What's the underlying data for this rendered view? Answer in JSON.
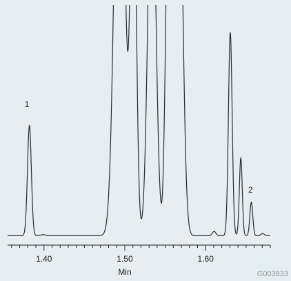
{
  "colors": {
    "background": "#e6eef1",
    "trace": "#2a2a2a",
    "axis": "#222222",
    "figure_id": "#8a9aa3"
  },
  "figure_id": "G003833",
  "chart_data": {
    "type": "line",
    "title": "",
    "xlabel": "Min",
    "ylabel": "",
    "xlim": [
      1.355,
      1.68
    ],
    "ylim": [
      0,
      100
    ],
    "x_ticks": [
      1.4,
      1.5,
      1.6
    ],
    "x_tick_labels": [
      "1.40",
      "1.50",
      "1.60"
    ],
    "minor_tick_step": 0.01,
    "grid": false,
    "baseline": 0.5,
    "peaks": [
      {
        "x": 1.382,
        "height": 51,
        "width": 0.0024
      },
      {
        "x": 1.399,
        "height": 0.5,
        "width": 0.003
      },
      {
        "x": 1.4935,
        "height": 240,
        "width": 0.006
      },
      {
        "x": 1.5105,
        "height": 190,
        "width": 0.0035
      },
      {
        "x": 1.5335,
        "height": 180,
        "width": 0.0048
      },
      {
        "x": 1.5495,
        "height": 8,
        "width": 0.0018
      },
      {
        "x": 1.5555,
        "height": 210,
        "width": 0.0038
      },
      {
        "x": 1.5665,
        "height": 200,
        "width": 0.0048
      },
      {
        "x": 1.6105,
        "height": 2,
        "width": 0.0022
      },
      {
        "x": 1.6305,
        "height": 94,
        "width": 0.0023
      },
      {
        "x": 1.6435,
        "height": 36,
        "width": 0.0018
      },
      {
        "x": 1.6565,
        "height": 15.5,
        "width": 0.0018
      },
      {
        "x": 1.6705,
        "height": 1,
        "width": 0.0022
      }
    ],
    "annotations": [
      {
        "text": "1",
        "x": 1.379,
        "y": 60
      },
      {
        "text": "2",
        "x": 1.6555,
        "y": 20.5
      }
    ]
  }
}
